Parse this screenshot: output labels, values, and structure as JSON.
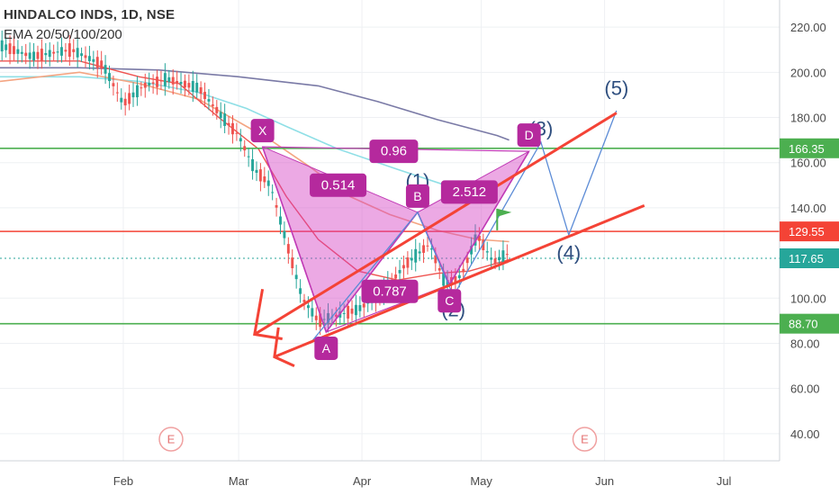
{
  "header": {
    "title": "HINDALCO INDS, 1D, NSE",
    "indicator": "EMA 20/50/100/200"
  },
  "chart_data": {
    "type": "candlestick",
    "yaxis": {
      "ticks": [
        220,
        200,
        180,
        160,
        140,
        100,
        80,
        60,
        40
      ],
      "tick_labels": [
        "220.00",
        "200.00",
        "180.00",
        "160.00",
        "140.00",
        "100.00",
        "80.00",
        "60.00",
        "40.00"
      ],
      "range": [
        28,
        232
      ]
    },
    "xaxis": {
      "labels": [
        {
          "label": "Feb",
          "day": 31
        },
        {
          "label": "Mar",
          "day": 60
        },
        {
          "label": "Apr",
          "day": 91
        },
        {
          "label": "May",
          "day": 121
        },
        {
          "label": "Jun",
          "day": 152
        },
        {
          "label": "Jul",
          "day": 182
        }
      ],
      "range": [
        0,
        196
      ]
    },
    "price_tags": [
      {
        "value": 166.35,
        "label": "166.35",
        "color": "#4caf50"
      },
      {
        "value": 129.55,
        "label": "129.55",
        "color": "#f44336"
      },
      {
        "value": 117.65,
        "label": "117.65",
        "color": "#26a69a"
      },
      {
        "value": 88.7,
        "label": "88.70",
        "color": "#4caf50"
      }
    ],
    "pattern_points": [
      {
        "label": "X",
        "day": 66,
        "value": 167
      },
      {
        "label": "A",
        "day": 82,
        "value": 85
      },
      {
        "label": "B",
        "day": 105,
        "value": 138
      },
      {
        "label": "C",
        "day": 113,
        "value": 106
      },
      {
        "label": "D",
        "day": 133,
        "value": 165
      }
    ],
    "ratios": [
      {
        "label": "0.514",
        "day": 85,
        "value": 150
      },
      {
        "label": "0.787",
        "day": 98,
        "value": 103
      },
      {
        "label": "0.96",
        "day": 99,
        "value": 165
      },
      {
        "label": "2.512",
        "day": 118,
        "value": 147
      }
    ],
    "waves": [
      {
        "label": "(1)",
        "day": 105,
        "value": 152
      },
      {
        "label": "(2)",
        "day": 114,
        "value": 95
      },
      {
        "label": "(3)",
        "day": 136,
        "value": 175
      },
      {
        "label": "(4)",
        "day": 143,
        "value": 120
      },
      {
        "label": "(5)",
        "day": 155,
        "value": 193
      }
    ],
    "earnings": [
      {
        "label": "E",
        "day": 43
      },
      {
        "label": "E",
        "day": 147
      }
    ]
  }
}
